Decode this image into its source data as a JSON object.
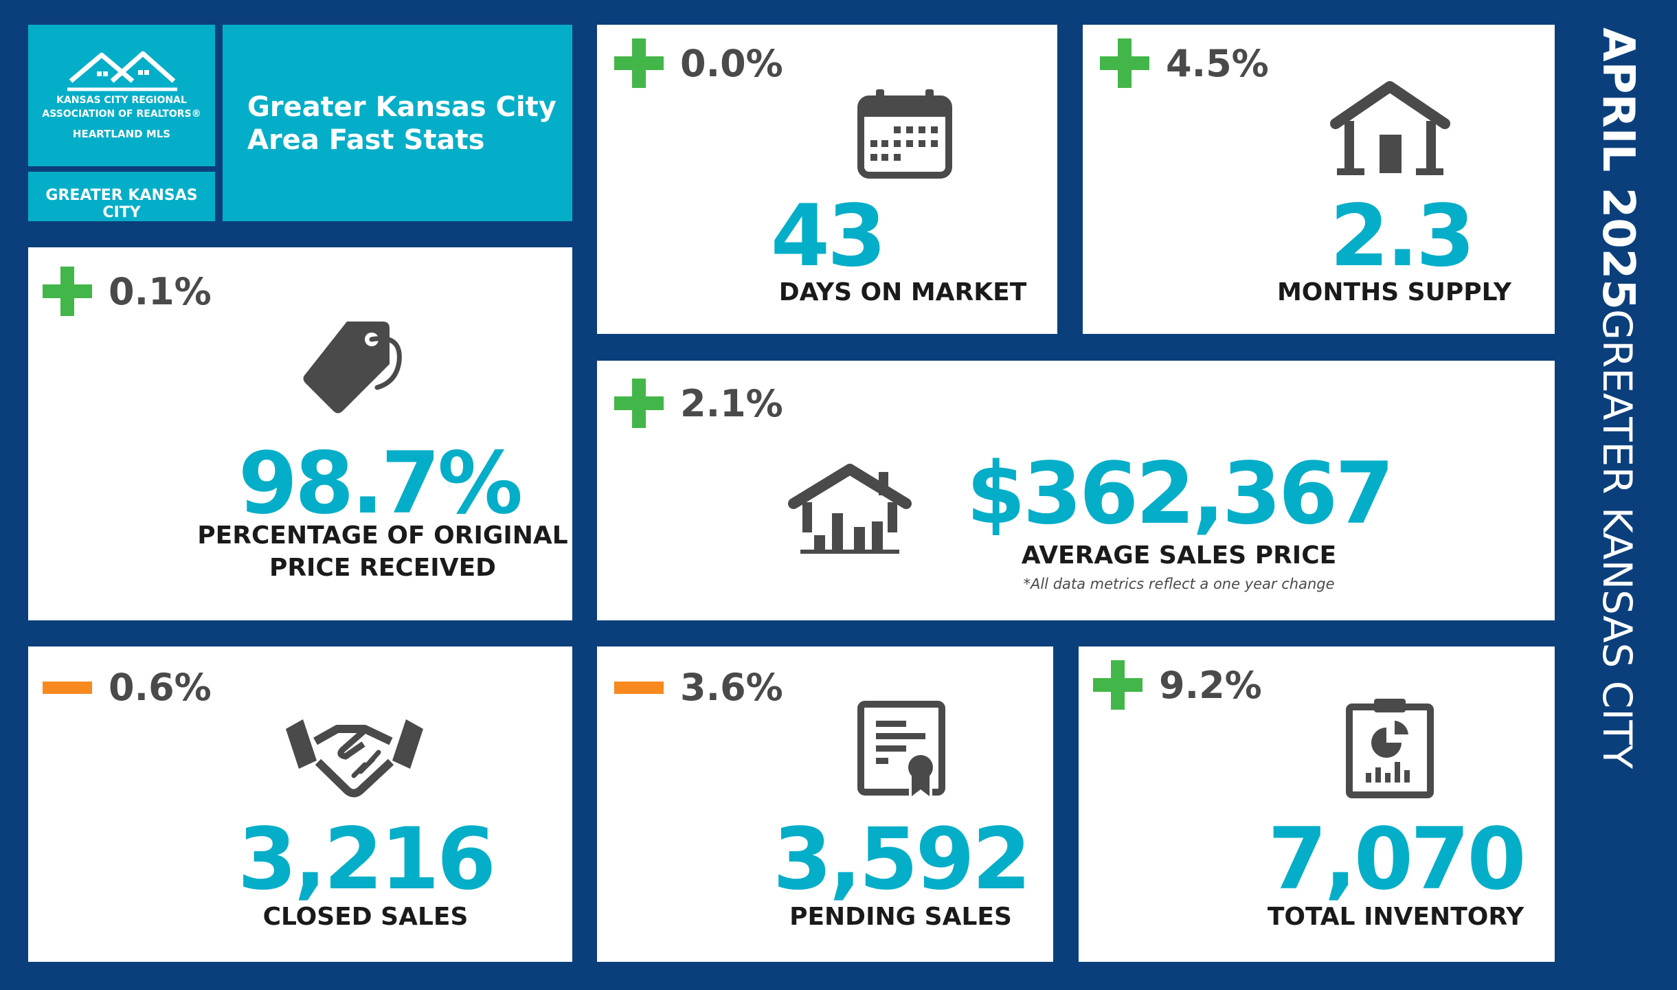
{
  "logo": {
    "line1": "KANSAS CITY REGIONAL",
    "line2": "ASSOCIATION OF REALTORS®",
    "line3": "HEARTLAND MLS"
  },
  "region_tag": "GREATER KANSAS CITY",
  "title": "Greater Kansas City Area Fast Stats",
  "side": {
    "date": "APRIL 2025",
    "region": "GREATER KANSAS CITY"
  },
  "stats": {
    "days_on_market": {
      "direction": "up",
      "change": "0.0%",
      "value": "43",
      "label": "DAYS ON MARKET",
      "icon": "calendar-icon"
    },
    "months_supply": {
      "direction": "up",
      "change": "4.5%",
      "value": "2.3",
      "label": "MONTHS SUPPLY",
      "icon": "house-icon"
    },
    "pct_original_price": {
      "direction": "up",
      "change": "0.1%",
      "value": "98.7%",
      "label_line1": "PERCENTAGE OF ORIGINAL",
      "label_line2": "PRICE RECEIVED",
      "icon": "price-tag-icon"
    },
    "average_sales_price": {
      "direction": "up",
      "change": "2.1%",
      "value": "$362,367",
      "label": "AVERAGE SALES PRICE",
      "note": "*All data metrics reflect a one year change",
      "icon": "house-chart-icon"
    },
    "closed_sales": {
      "direction": "down",
      "change": "0.6%",
      "value": "3,216",
      "label": "CLOSED SALES",
      "icon": "handshake-icon"
    },
    "pending_sales": {
      "direction": "down",
      "change": "3.6%",
      "value": "3,592",
      "label": "PENDING SALES",
      "icon": "certificate-icon"
    },
    "total_inventory": {
      "direction": "up",
      "change": "9.2%",
      "value": "7,070",
      "label": "TOTAL INVENTORY",
      "icon": "clipboard-chart-icon"
    }
  },
  "colors": {
    "background": "#0b3f7c",
    "accent": "#05aec8",
    "increase": "#43b649",
    "decrease": "#f7891f",
    "icon": "#4a4a4a"
  }
}
